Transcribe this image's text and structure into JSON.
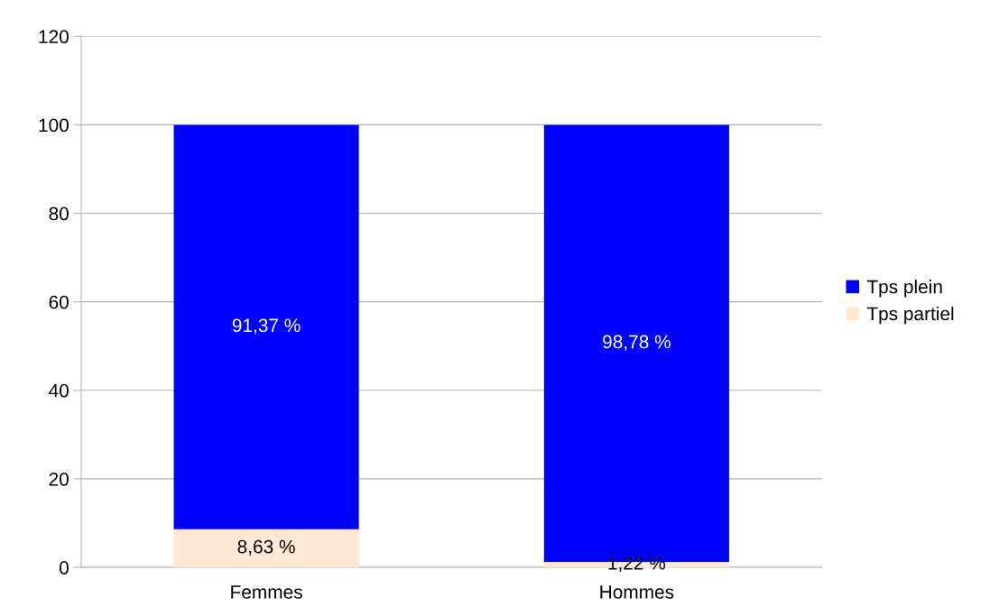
{
  "chart_data": {
    "type": "bar",
    "stacked": true,
    "categories": [
      "Femmes",
      "Hommes"
    ],
    "series": [
      {
        "name": "Tps partiel",
        "color": "#ffe9d4",
        "values": [
          8.63,
          1.22
        ],
        "value_labels": [
          "8,63 %",
          "1,22 %"
        ]
      },
      {
        "name": "Tps plein",
        "color": "#0000ff",
        "values": [
          91.37,
          98.78
        ],
        "value_labels": [
          "91,37 %",
          "98,78 %"
        ]
      }
    ],
    "ylim": [
      0,
      120
    ],
    "yticks": [
      0,
      20,
      40,
      60,
      80,
      100,
      120
    ],
    "grid": "y",
    "legend": "right"
  }
}
